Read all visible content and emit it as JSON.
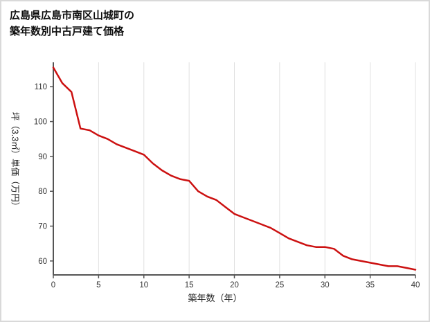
{
  "title": {
    "line1": "広島県広島市南区山城町の",
    "line2": "築年数別中古戸建て価格"
  },
  "chart_data": {
    "type": "line",
    "title": "広島県広島市南区山城町の築年数別中古戸建て価格",
    "xlabel": "築年数（年）",
    "ylabel": "坪（3.3㎡）単価（万円）",
    "x": [
      0,
      1,
      2,
      3,
      4,
      5,
      6,
      7,
      8,
      9,
      10,
      11,
      12,
      13,
      14,
      15,
      16,
      17,
      18,
      19,
      20,
      21,
      22,
      23,
      24,
      25,
      26,
      27,
      28,
      29,
      30,
      31,
      32,
      33,
      34,
      35,
      36,
      37,
      38,
      39,
      40
    ],
    "values": [
      115.5,
      111,
      108.5,
      98,
      97.5,
      96,
      95,
      93.5,
      92.5,
      91.5,
      90.5,
      88,
      86,
      84.5,
      83.5,
      83,
      80,
      78.5,
      77.5,
      75.5,
      73.5,
      72.5,
      71.5,
      70.5,
      69.5,
      68,
      66.5,
      65.5,
      64.5,
      64,
      64,
      63.5,
      61.5,
      60.5,
      60,
      59.5,
      59,
      58.5,
      58.5,
      58,
      57.5
    ],
    "xlim": [
      0,
      40
    ],
    "ylim": [
      56,
      117
    ],
    "xticks": [
      0,
      5,
      10,
      15,
      20,
      25,
      30,
      35,
      40
    ],
    "yticks": [
      60,
      70,
      80,
      90,
      100,
      110
    ],
    "grid": "vertical-only",
    "legend": "none",
    "colors": {
      "line": "#cc1111",
      "axis": "#555555",
      "grid": "#e0e0e0",
      "tick_text": "#333333"
    }
  }
}
